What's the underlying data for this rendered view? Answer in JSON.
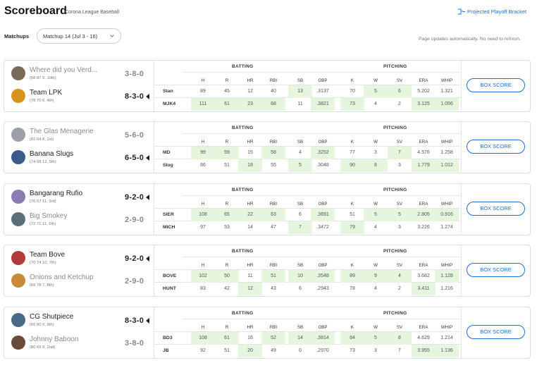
{
  "header": {
    "title": "Scoreboard",
    "league": "Corona League Baseball",
    "projected_link": "Projected Playoff Bracket",
    "matchups_label": "Matchups",
    "matchup_selected": "Matchup 14 (Jul 3 - 16)",
    "auto_note": "Page updates automatically. No need to refresh."
  },
  "labels": {
    "batting": "BATTING",
    "pitching": "PITCHING",
    "box_score": "BOX SCORE",
    "columns": [
      "H",
      "R",
      "HR",
      "RBI",
      "SB",
      "OBP",
      "K",
      "W",
      "SV",
      "ERA",
      "WHIP"
    ]
  },
  "colors": {
    "accent": "#1a6fd1",
    "highlight": "#e6f5dd"
  },
  "matchups": [
    {
      "teams": [
        {
          "name": "Where did you Verd...",
          "sub": "(58 87 9, 10th)",
          "record": "3-8-0",
          "winner": false,
          "abbr": "Stan",
          "avatar_icon": "person-photo-icon",
          "avatar_color": "#7a6a5c",
          "stats": [
            "89",
            "45",
            "12",
            "40",
            "13",
            ".3137",
            "70",
            "5",
            "6",
            "5.202",
            "1.321"
          ],
          "hi": [
            false,
            false,
            false,
            false,
            true,
            false,
            false,
            true,
            true,
            false,
            false
          ]
        },
        {
          "name": "Team LPK",
          "sub": "(78 70 6, 4th)",
          "record": "8-3-0",
          "winner": true,
          "abbr": "MJK4",
          "avatar_icon": "beer-mug-icon",
          "avatar_color": "#d9941e",
          "stats": [
            "111",
            "61",
            "23",
            "68",
            "11",
            ".3821",
            "73",
            "4",
            "2",
            "3.125",
            "1.056"
          ],
          "hi": [
            true,
            true,
            true,
            true,
            false,
            true,
            true,
            false,
            false,
            true,
            true
          ]
        }
      ]
    },
    {
      "teams": [
        {
          "name": "The Glas Menagerie",
          "sub": "(82 64 8, 1st)",
          "record": "5-6-0",
          "winner": false,
          "abbr": "MD",
          "avatar_icon": "shoe-icon",
          "avatar_color": "#9aa0a6",
          "stats": [
            "99",
            "59",
            "15",
            "58",
            "4",
            ".3252",
            "77",
            "3",
            "7",
            "4.576",
            "1.258"
          ],
          "hi": [
            true,
            true,
            false,
            true,
            false,
            true,
            false,
            false,
            true,
            false,
            false
          ]
        },
        {
          "name": "Banana Slugs",
          "sub": "(74 68 12, 5th)",
          "record": "6-5-0",
          "winner": true,
          "abbr": "Slug",
          "avatar_icon": "slug-mascot-icon",
          "avatar_color": "#3c5a8a",
          "stats": [
            "86",
            "51",
            "18",
            "55",
            "5",
            ".3048",
            "90",
            "8",
            "3",
            "1.779",
            "1.012"
          ],
          "hi": [
            false,
            false,
            true,
            false,
            true,
            false,
            true,
            true,
            false,
            true,
            true
          ]
        }
      ]
    },
    {
      "teams": [
        {
          "name": "Bangarang Rufio",
          "sub": "(76 67 11, 3rd)",
          "record": "9-2-0",
          "winner": true,
          "abbr": "SIER",
          "avatar_icon": "cartoon-avatar-icon",
          "avatar_color": "#8a7bb5",
          "stats": [
            "108",
            "65",
            "22",
            "63",
            "6",
            ".3691",
            "51",
            "5",
            "5",
            "2.805",
            "0.916"
          ],
          "hi": [
            true,
            true,
            true,
            true,
            false,
            true,
            false,
            true,
            true,
            true,
            true
          ]
        },
        {
          "name": "Big Smokey",
          "sub": "(72 71 11, 6th)",
          "record": "2-9-0",
          "winner": false,
          "abbr": "MICH",
          "avatar_icon": "person-photo-icon",
          "avatar_color": "#5b6e7a",
          "stats": [
            "97",
            "53",
            "14",
            "47",
            "7",
            ".3472",
            "79",
            "4",
            "3",
            "3.226",
            "1.274"
          ],
          "hi": [
            false,
            false,
            false,
            false,
            true,
            false,
            true,
            false,
            false,
            false,
            false
          ]
        }
      ]
    },
    {
      "teams": [
        {
          "name": "Team Bove",
          "sub": "(70 74 10, 7th)",
          "record": "9-2-0",
          "winner": true,
          "abbr": "BOVE",
          "avatar_icon": "trucker-hat-icon",
          "avatar_color": "#b23a3a",
          "stats": [
            "102",
            "50",
            "11",
            "51",
            "10",
            ".3548",
            "89",
            "9",
            "4",
            "3.682",
            "1.128"
          ],
          "hi": [
            true,
            true,
            false,
            true,
            true,
            true,
            true,
            true,
            true,
            false,
            true
          ]
        },
        {
          "name": "Onions and Ketchup",
          "sub": "(69 78 7, 8th)",
          "record": "2-9-0",
          "winner": false,
          "abbr": "HUNT",
          "avatar_icon": "food-photo-icon",
          "avatar_color": "#c98a3a",
          "stats": [
            "83",
            "42",
            "12",
            "43",
            "6",
            ".2943",
            "78",
            "4",
            "2",
            "3.411",
            "1.216"
          ],
          "hi": [
            false,
            false,
            true,
            false,
            false,
            false,
            false,
            false,
            false,
            true,
            false
          ]
        }
      ]
    },
    {
      "teams": [
        {
          "name": "CG Shutpiece",
          "sub": "(65 80 9, 9th)",
          "record": "8-3-0",
          "winner": true,
          "abbr": "BD3",
          "avatar_icon": "pitcher-icon",
          "avatar_color": "#4a6a8a",
          "stats": [
            "108",
            "61",
            "16",
            "52",
            "14",
            ".3814",
            "84",
            "5",
            "8",
            "4.629",
            "1.214"
          ],
          "hi": [
            true,
            true,
            false,
            true,
            true,
            true,
            true,
            true,
            true,
            false,
            false
          ]
        },
        {
          "name": "Johnny Baboon",
          "sub": "(80 65 9, 2nd)",
          "record": "3-8-0",
          "winner": false,
          "abbr": "JB",
          "avatar_icon": "person-photo-icon",
          "avatar_color": "#6b4a3a",
          "stats": [
            "92",
            "51",
            "20",
            "49",
            "0",
            ".2970",
            "73",
            "3",
            "7",
            "3.955",
            "1.136"
          ],
          "hi": [
            false,
            false,
            true,
            false,
            false,
            false,
            false,
            false,
            false,
            true,
            true
          ]
        }
      ]
    }
  ]
}
